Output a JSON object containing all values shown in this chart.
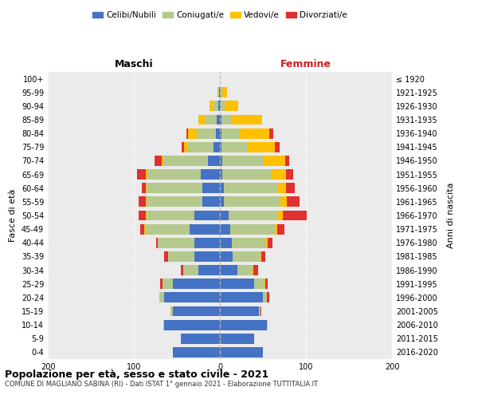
{
  "age_groups": [
    "0-4",
    "5-9",
    "10-14",
    "15-19",
    "20-24",
    "25-29",
    "30-34",
    "35-39",
    "40-44",
    "45-49",
    "50-54",
    "55-59",
    "60-64",
    "65-69",
    "70-74",
    "75-79",
    "80-84",
    "85-89",
    "90-94",
    "95-99",
    "100+"
  ],
  "birth_years": [
    "2016-2020",
    "2011-2015",
    "2006-2010",
    "2001-2005",
    "1996-2000",
    "1991-1995",
    "1986-1990",
    "1981-1985",
    "1976-1980",
    "1971-1975",
    "1966-1970",
    "1961-1965",
    "1956-1960",
    "1951-1955",
    "1946-1950",
    "1941-1945",
    "1936-1940",
    "1931-1935",
    "1926-1930",
    "1921-1925",
    "≤ 1920"
  ],
  "maschi": {
    "celibi": [
      55,
      45,
      65,
      55,
      65,
      55,
      25,
      30,
      30,
      35,
      30,
      20,
      20,
      22,
      14,
      7,
      5,
      4,
      2,
      1,
      0
    ],
    "coniugati": [
      0,
      0,
      1,
      2,
      5,
      12,
      18,
      30,
      42,
      52,
      55,
      65,
      65,
      62,
      52,
      30,
      22,
      14,
      5,
      1,
      0
    ],
    "vedovi": [
      0,
      0,
      0,
      0,
      0,
      0,
      0,
      0,
      0,
      1,
      1,
      1,
      1,
      2,
      2,
      5,
      10,
      7,
      5,
      1,
      0
    ],
    "divorziati": [
      0,
      0,
      0,
      0,
      0,
      2,
      2,
      5,
      2,
      5,
      8,
      8,
      5,
      10,
      8,
      2,
      2,
      0,
      0,
      0,
      0
    ]
  },
  "femmine": {
    "nubili": [
      50,
      40,
      55,
      45,
      50,
      40,
      20,
      15,
      14,
      12,
      10,
      5,
      5,
      3,
      3,
      2,
      2,
      2,
      1,
      1,
      0
    ],
    "coniugate": [
      0,
      0,
      1,
      2,
      5,
      12,
      18,
      32,
      40,
      52,
      58,
      65,
      62,
      56,
      48,
      30,
      20,
      12,
      5,
      2,
      0
    ],
    "vedove": [
      0,
      0,
      0,
      0,
      0,
      1,
      1,
      1,
      2,
      3,
      5,
      8,
      10,
      18,
      25,
      32,
      35,
      35,
      15,
      5,
      0
    ],
    "divorziate": [
      0,
      0,
      0,
      1,
      2,
      3,
      5,
      5,
      5,
      8,
      28,
      15,
      10,
      8,
      5,
      5,
      5,
      0,
      0,
      0,
      0
    ]
  },
  "colors": {
    "celibi": "#4472c4",
    "coniugati": "#b5c98e",
    "vedovi": "#ffc000",
    "divorziati": "#e03030"
  },
  "xlim": [
    -200,
    200
  ],
  "xticks": [
    -200,
    -100,
    0,
    100,
    200
  ],
  "xticklabels": [
    "200",
    "100",
    "0",
    "100",
    "200"
  ],
  "title_main": "Popolazione per età, sesso e stato civile - 2021",
  "title_sub": "COMUNE DI MAGLIANO SABINA (RI) - Dati ISTAT 1° gennaio 2021 - Elaborazione TUTTITALIA.IT",
  "ylabel_left": "Fasce di età",
  "ylabel_right": "Anni di nascita",
  "label_maschi": "Maschi",
  "label_femmine": "Femmine",
  "legend_labels": [
    "Celibi/Nubili",
    "Coniugati/e",
    "Vedovi/e",
    "Divorziati/e"
  ],
  "bg_color": "#ebebeb",
  "bar_height": 0.75
}
